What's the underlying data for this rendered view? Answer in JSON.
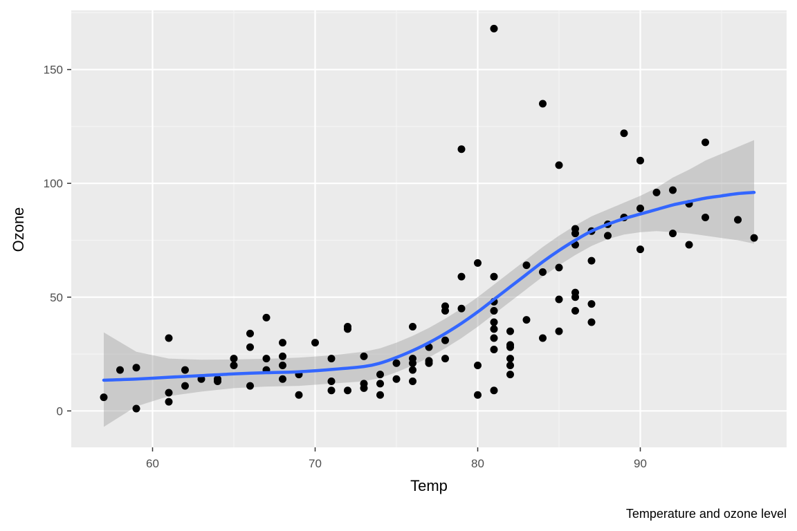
{
  "chart_data": {
    "type": "scatter",
    "title": "",
    "caption": "Temperature and ozone level",
    "xlabel": "Temp",
    "ylabel": "Ozone",
    "xlim": [
      55,
      99
    ],
    "ylim": [
      -16,
      176
    ],
    "x_ticks": [
      60,
      70,
      80,
      90
    ],
    "y_ticks": [
      0,
      50,
      100,
      150
    ],
    "grid": true,
    "legend": "none",
    "colors": {
      "panel": "#ebebeb",
      "grid_major": "#ffffff",
      "grid_minor": "#f5f5f5",
      "points": "#000000",
      "smooth_line": "#3366ff",
      "ribbon": "#999999",
      "tick": "#333333"
    },
    "points": [
      [
        57,
        6
      ],
      [
        58,
        18
      ],
      [
        59,
        19
      ],
      [
        59,
        1
      ],
      [
        61,
        32
      ],
      [
        61,
        8
      ],
      [
        61,
        4
      ],
      [
        62,
        18
      ],
      [
        62,
        11
      ],
      [
        63,
        14
      ],
      [
        64,
        14
      ],
      [
        64,
        13
      ],
      [
        65,
        23
      ],
      [
        65,
        20
      ],
      [
        66,
        34
      ],
      [
        66,
        28
      ],
      [
        66,
        11
      ],
      [
        67,
        41
      ],
      [
        67,
        23
      ],
      [
        67,
        18
      ],
      [
        68,
        30
      ],
      [
        68,
        24
      ],
      [
        68,
        20
      ],
      [
        68,
        14
      ],
      [
        69,
        16
      ],
      [
        69,
        7
      ],
      [
        70,
        30
      ],
      [
        71,
        23
      ],
      [
        71,
        13
      ],
      [
        71,
        9
      ],
      [
        72,
        37
      ],
      [
        72,
        36
      ],
      [
        72,
        9
      ],
      [
        73,
        24
      ],
      [
        73,
        12
      ],
      [
        73,
        10
      ],
      [
        74,
        16
      ],
      [
        74,
        12
      ],
      [
        74,
        7
      ],
      [
        75,
        21
      ],
      [
        75,
        14
      ],
      [
        76,
        37
      ],
      [
        76,
        23
      ],
      [
        76,
        21
      ],
      [
        76,
        18
      ],
      [
        76,
        13
      ],
      [
        77,
        28
      ],
      [
        77,
        22
      ],
      [
        77,
        21
      ],
      [
        78,
        46
      ],
      [
        78,
        44
      ],
      [
        78,
        31
      ],
      [
        78,
        23
      ],
      [
        79,
        115
      ],
      [
        79,
        59
      ],
      [
        79,
        45
      ],
      [
        80,
        65
      ],
      [
        80,
        20
      ],
      [
        80,
        7
      ],
      [
        81,
        168
      ],
      [
        81,
        59
      ],
      [
        81,
        48
      ],
      [
        81,
        44
      ],
      [
        81,
        39
      ],
      [
        81,
        36
      ],
      [
        81,
        32
      ],
      [
        81,
        27
      ],
      [
        81,
        9
      ],
      [
        82,
        35
      ],
      [
        82,
        29
      ],
      [
        82,
        28
      ],
      [
        82,
        23
      ],
      [
        82,
        20
      ],
      [
        82,
        16
      ],
      [
        83,
        64
      ],
      [
        83,
        40
      ],
      [
        84,
        135
      ],
      [
        84,
        61
      ],
      [
        84,
        32
      ],
      [
        85,
        108
      ],
      [
        85,
        63
      ],
      [
        85,
        49
      ],
      [
        85,
        35
      ],
      [
        86,
        80
      ],
      [
        86,
        78
      ],
      [
        86,
        73
      ],
      [
        86,
        52
      ],
      [
        86,
        50
      ],
      [
        86,
        44
      ],
      [
        87,
        79
      ],
      [
        87,
        66
      ],
      [
        87,
        47
      ],
      [
        87,
        39
      ],
      [
        88,
        82
      ],
      [
        88,
        77
      ],
      [
        89,
        122
      ],
      [
        89,
        85
      ],
      [
        90,
        110
      ],
      [
        90,
        89
      ],
      [
        90,
        71
      ],
      [
        91,
        96
      ],
      [
        92,
        97
      ],
      [
        92,
        78
      ],
      [
        93,
        91
      ],
      [
        93,
        73
      ],
      [
        94,
        118
      ],
      [
        94,
        85
      ],
      [
        96,
        84
      ],
      [
        97,
        76
      ]
    ],
    "smooth": {
      "x": [
        57,
        59,
        61,
        63,
        65,
        67,
        69,
        71,
        73,
        74,
        75,
        76,
        77,
        78,
        79,
        80,
        81,
        82,
        83,
        84,
        85,
        86,
        87,
        88,
        89,
        90,
        91,
        92,
        93,
        94,
        95,
        96,
        97
      ],
      "y": [
        13.5,
        14,
        14.8,
        15.5,
        16.3,
        16.8,
        17.2,
        18.2,
        19.5,
        21,
        23.5,
        26.5,
        30,
        34,
        38.5,
        43.5,
        49,
        54.5,
        60,
        65.5,
        70.5,
        75,
        79,
        82,
        84.5,
        86.5,
        88.5,
        90.5,
        92,
        93.5,
        94.5,
        95.5,
        96
      ],
      "lower": [
        -7,
        2,
        6.5,
        8.5,
        10,
        10.7,
        11,
        12,
        13,
        14.5,
        17,
        20,
        23.5,
        27.5,
        32,
        37,
        42.5,
        48,
        53.5,
        59,
        64,
        68.5,
        72.5,
        75.5,
        77.5,
        78.5,
        79,
        78.5,
        78,
        77,
        76,
        75,
        73.5
      ],
      "upper": [
        34.5,
        26,
        23,
        22.5,
        22.6,
        22.9,
        23.4,
        24.4,
        26,
        27.5,
        30,
        33,
        36.5,
        40.5,
        45,
        50,
        55.5,
        61,
        66.5,
        72,
        77,
        81.5,
        85.5,
        88.5,
        91.5,
        94.5,
        98,
        102.5,
        106,
        110,
        113,
        116,
        119
      ]
    }
  }
}
